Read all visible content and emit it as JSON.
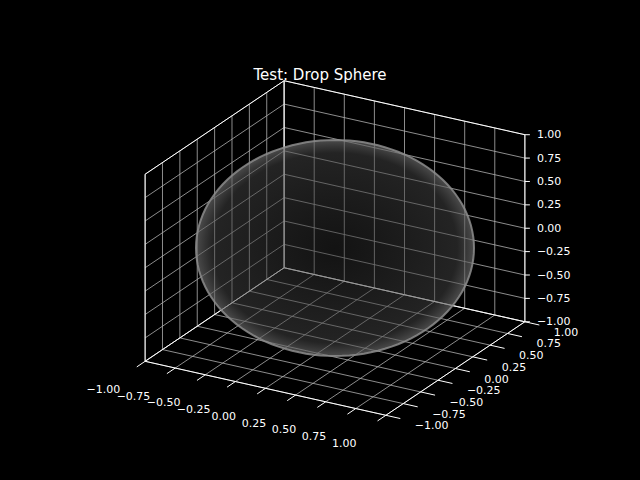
{
  "chart_data": {
    "type": "sphere3d",
    "title": "Test: Drop Sphere",
    "center": [
      0,
      0,
      0
    ],
    "radius": 1,
    "color": "#8c8c8c",
    "xlim": [
      -1,
      1
    ],
    "ylim": [
      -1,
      1
    ],
    "zlim": [
      -1,
      1
    ],
    "xticks": [
      {
        "value": -1,
        "label": "−1.00"
      },
      {
        "value": -0.75,
        "label": "−0.75"
      },
      {
        "value": -0.5,
        "label": "−0.50"
      },
      {
        "value": -0.25,
        "label": "−0.25"
      },
      {
        "value": 0,
        "label": "0.00"
      },
      {
        "value": 0.25,
        "label": "0.25"
      },
      {
        "value": 0.5,
        "label": "0.50"
      },
      {
        "value": 0.75,
        "label": "0.75"
      },
      {
        "value": 1,
        "label": "1.00"
      }
    ],
    "yticks": [
      {
        "value": -1,
        "label": "−1.00"
      },
      {
        "value": -0.75,
        "label": "−0.75"
      },
      {
        "value": -0.5,
        "label": "−0.50"
      },
      {
        "value": -0.25,
        "label": "−0.25"
      },
      {
        "value": 0,
        "label": "0.00"
      },
      {
        "value": 0.25,
        "label": "0.25"
      },
      {
        "value": 0.5,
        "label": "0.50"
      },
      {
        "value": 0.75,
        "label": "0.75"
      },
      {
        "value": 1,
        "label": "1.00"
      }
    ],
    "zticks": [
      {
        "value": -1,
        "label": "−1.00"
      },
      {
        "value": -0.75,
        "label": "−0.75"
      },
      {
        "value": -0.5,
        "label": "−0.50"
      },
      {
        "value": -0.25,
        "label": "−0.25"
      },
      {
        "value": 0,
        "label": "0.00"
      },
      {
        "value": 0.25,
        "label": "0.25"
      },
      {
        "value": 0.5,
        "label": "0.50"
      },
      {
        "value": 0.75,
        "label": "0.75"
      },
      {
        "value": 1,
        "label": "1.00"
      }
    ],
    "grid": true
  }
}
